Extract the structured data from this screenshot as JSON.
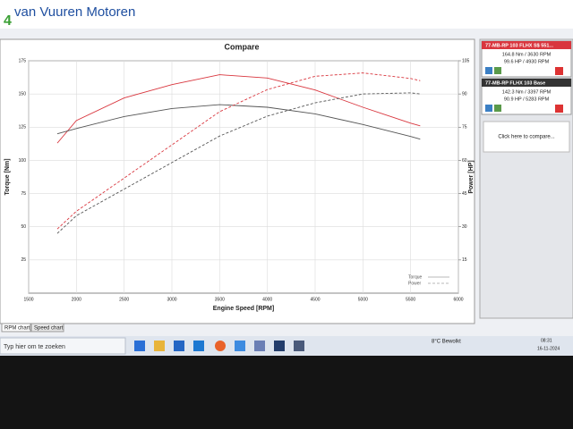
{
  "app": {
    "title": "van Vuuren Motoren",
    "tabs": [
      "RPM chart",
      "Speed chart"
    ]
  },
  "chart_data": {
    "type": "line",
    "title": "Compare",
    "x_label": "Engine Speed [RPM]",
    "y_label": "Torque [Nm]",
    "y2_label": "Power [HP]",
    "x": [
      1800,
      2000,
      2500,
      3000,
      3500,
      4000,
      4500,
      5000,
      5500,
      5600
    ],
    "xlim": [
      1500,
      6000
    ],
    "xticks": [
      1500,
      2000,
      2500,
      3000,
      3500,
      4000,
      4500,
      5000,
      5500,
      6000
    ],
    "ylim": [
      0,
      175
    ],
    "yticks": [
      25,
      50,
      75,
      100,
      125,
      150,
      175
    ],
    "y2lim": [
      0,
      105
    ],
    "y2ticks": [
      15,
      30,
      45,
      60,
      75,
      90,
      105
    ],
    "grid": true,
    "series": [
      {
        "color": "#d9363e",
        "dash": false,
        "values": [
          113,
          130,
          147,
          157,
          164.5,
          162,
          153,
          140,
          128,
          126
        ]
      },
      {
        "color": "#555555",
        "dash": false,
        "values": [
          120,
          124,
          133,
          139,
          142,
          140,
          135,
          127,
          118,
          116
        ]
      },
      {
        "color": "#d9363e",
        "dash": true,
        "axis": "y2",
        "values": [
          29,
          37,
          52,
          67,
          82,
          92,
          98,
          99.5,
          97,
          96
        ]
      },
      {
        "color": "#555555",
        "dash": true,
        "axis": "y2",
        "values": [
          27,
          35,
          47,
          59,
          71,
          80,
          86,
          90,
          90.5,
          90
        ]
      }
    ],
    "legend": [
      {
        "name": "Torque",
        "dash": false
      },
      {
        "name": "Power",
        "dash": true
      }
    ]
  },
  "panel": {
    "runs": [
      {
        "name": "77-MB-RP 103 FLHX S$ 551...",
        "torque": "164.8 Nm / 3630 RPM",
        "power": "99.6 HP / 4930 RPM",
        "color": "#d9363e"
      },
      {
        "name": "77-MB-RP FLHX 103 Base",
        "torque": "142.3 Nm / 3397 RPM",
        "power": "90.9 HP / 5283 RPM",
        "color": "#333333"
      }
    ],
    "compare": "Click here to compare..."
  },
  "taskbar": {
    "search": "Typ hier om te zoeken",
    "weather": "8°C Bewolkt",
    "time": "08:31",
    "date": "16-11-2024"
  }
}
